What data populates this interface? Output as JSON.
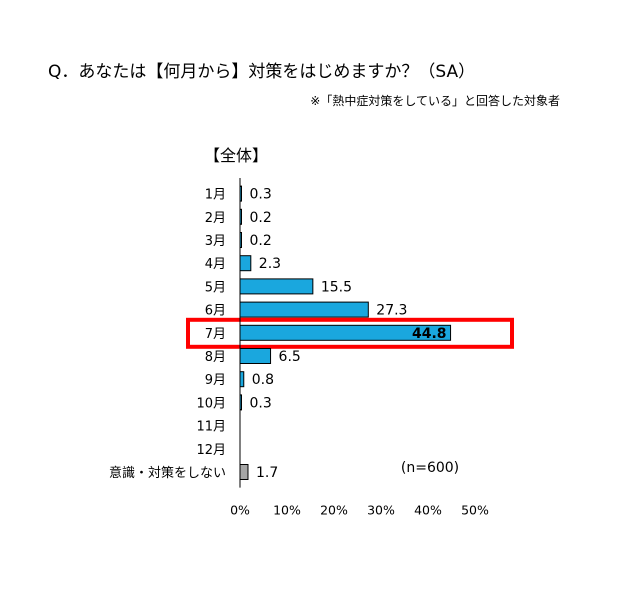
{
  "question": "Q．あなたは【何月から】対策をはじめますか？（SA）",
  "note": "※「熱中症対策をしている」と回答した対象者",
  "chart_data": {
    "type": "bar",
    "orientation": "horizontal",
    "title": "【全体】",
    "categories": [
      "1月",
      "2月",
      "3月",
      "4月",
      "5月",
      "6月",
      "7月",
      "8月",
      "9月",
      "10月",
      "11月",
      "12月",
      "意識・対策をしない"
    ],
    "values": [
      0.3,
      0.2,
      0.2,
      2.3,
      15.5,
      27.3,
      44.8,
      6.5,
      0.8,
      0.3,
      null,
      null,
      1.7
    ],
    "value_labels": [
      "0.3",
      "0.2",
      "0.2",
      "2.3",
      "15.5",
      "27.3",
      "44.8",
      "6.5",
      "0.8",
      "0.3",
      "",
      "",
      "1.7"
    ],
    "xlim": [
      0,
      50
    ],
    "x_ticks": [
      "0%",
      "10%",
      "20%",
      "30%",
      "40%",
      "50%"
    ],
    "sample_size": "(n=600)",
    "highlighted_category": "7月",
    "colors": {
      "bar": "#1aa7de",
      "bar_none": "#a6a6a6",
      "highlight": "#ff0000",
      "outline": "#000000"
    },
    "grid": false
  }
}
